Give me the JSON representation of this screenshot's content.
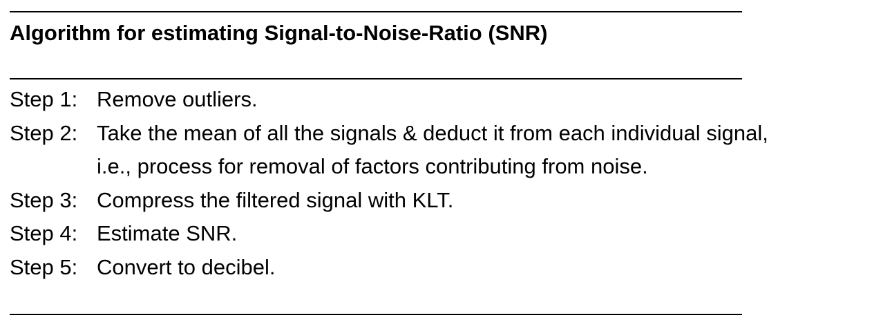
{
  "document": {
    "title": "Algorithm for estimating Signal-to-Noise-Ratio (SNR)",
    "steps": [
      {
        "label": "Step 1:",
        "lines": [
          "Remove outliers."
        ]
      },
      {
        "label": "Step 2:",
        "lines": [
          "Take the mean of all the signals & deduct it from each individual signal,",
          "i.e., process for removal of factors contributing from noise."
        ]
      },
      {
        "label": "Step 3:",
        "lines": [
          "Compress the filtered signal with KLT."
        ]
      },
      {
        "label": "Step 4:",
        "lines": [
          "Estimate SNR."
        ]
      },
      {
        "label": "Step 5:",
        "lines": [
          "Convert to decibel."
        ]
      }
    ]
  }
}
